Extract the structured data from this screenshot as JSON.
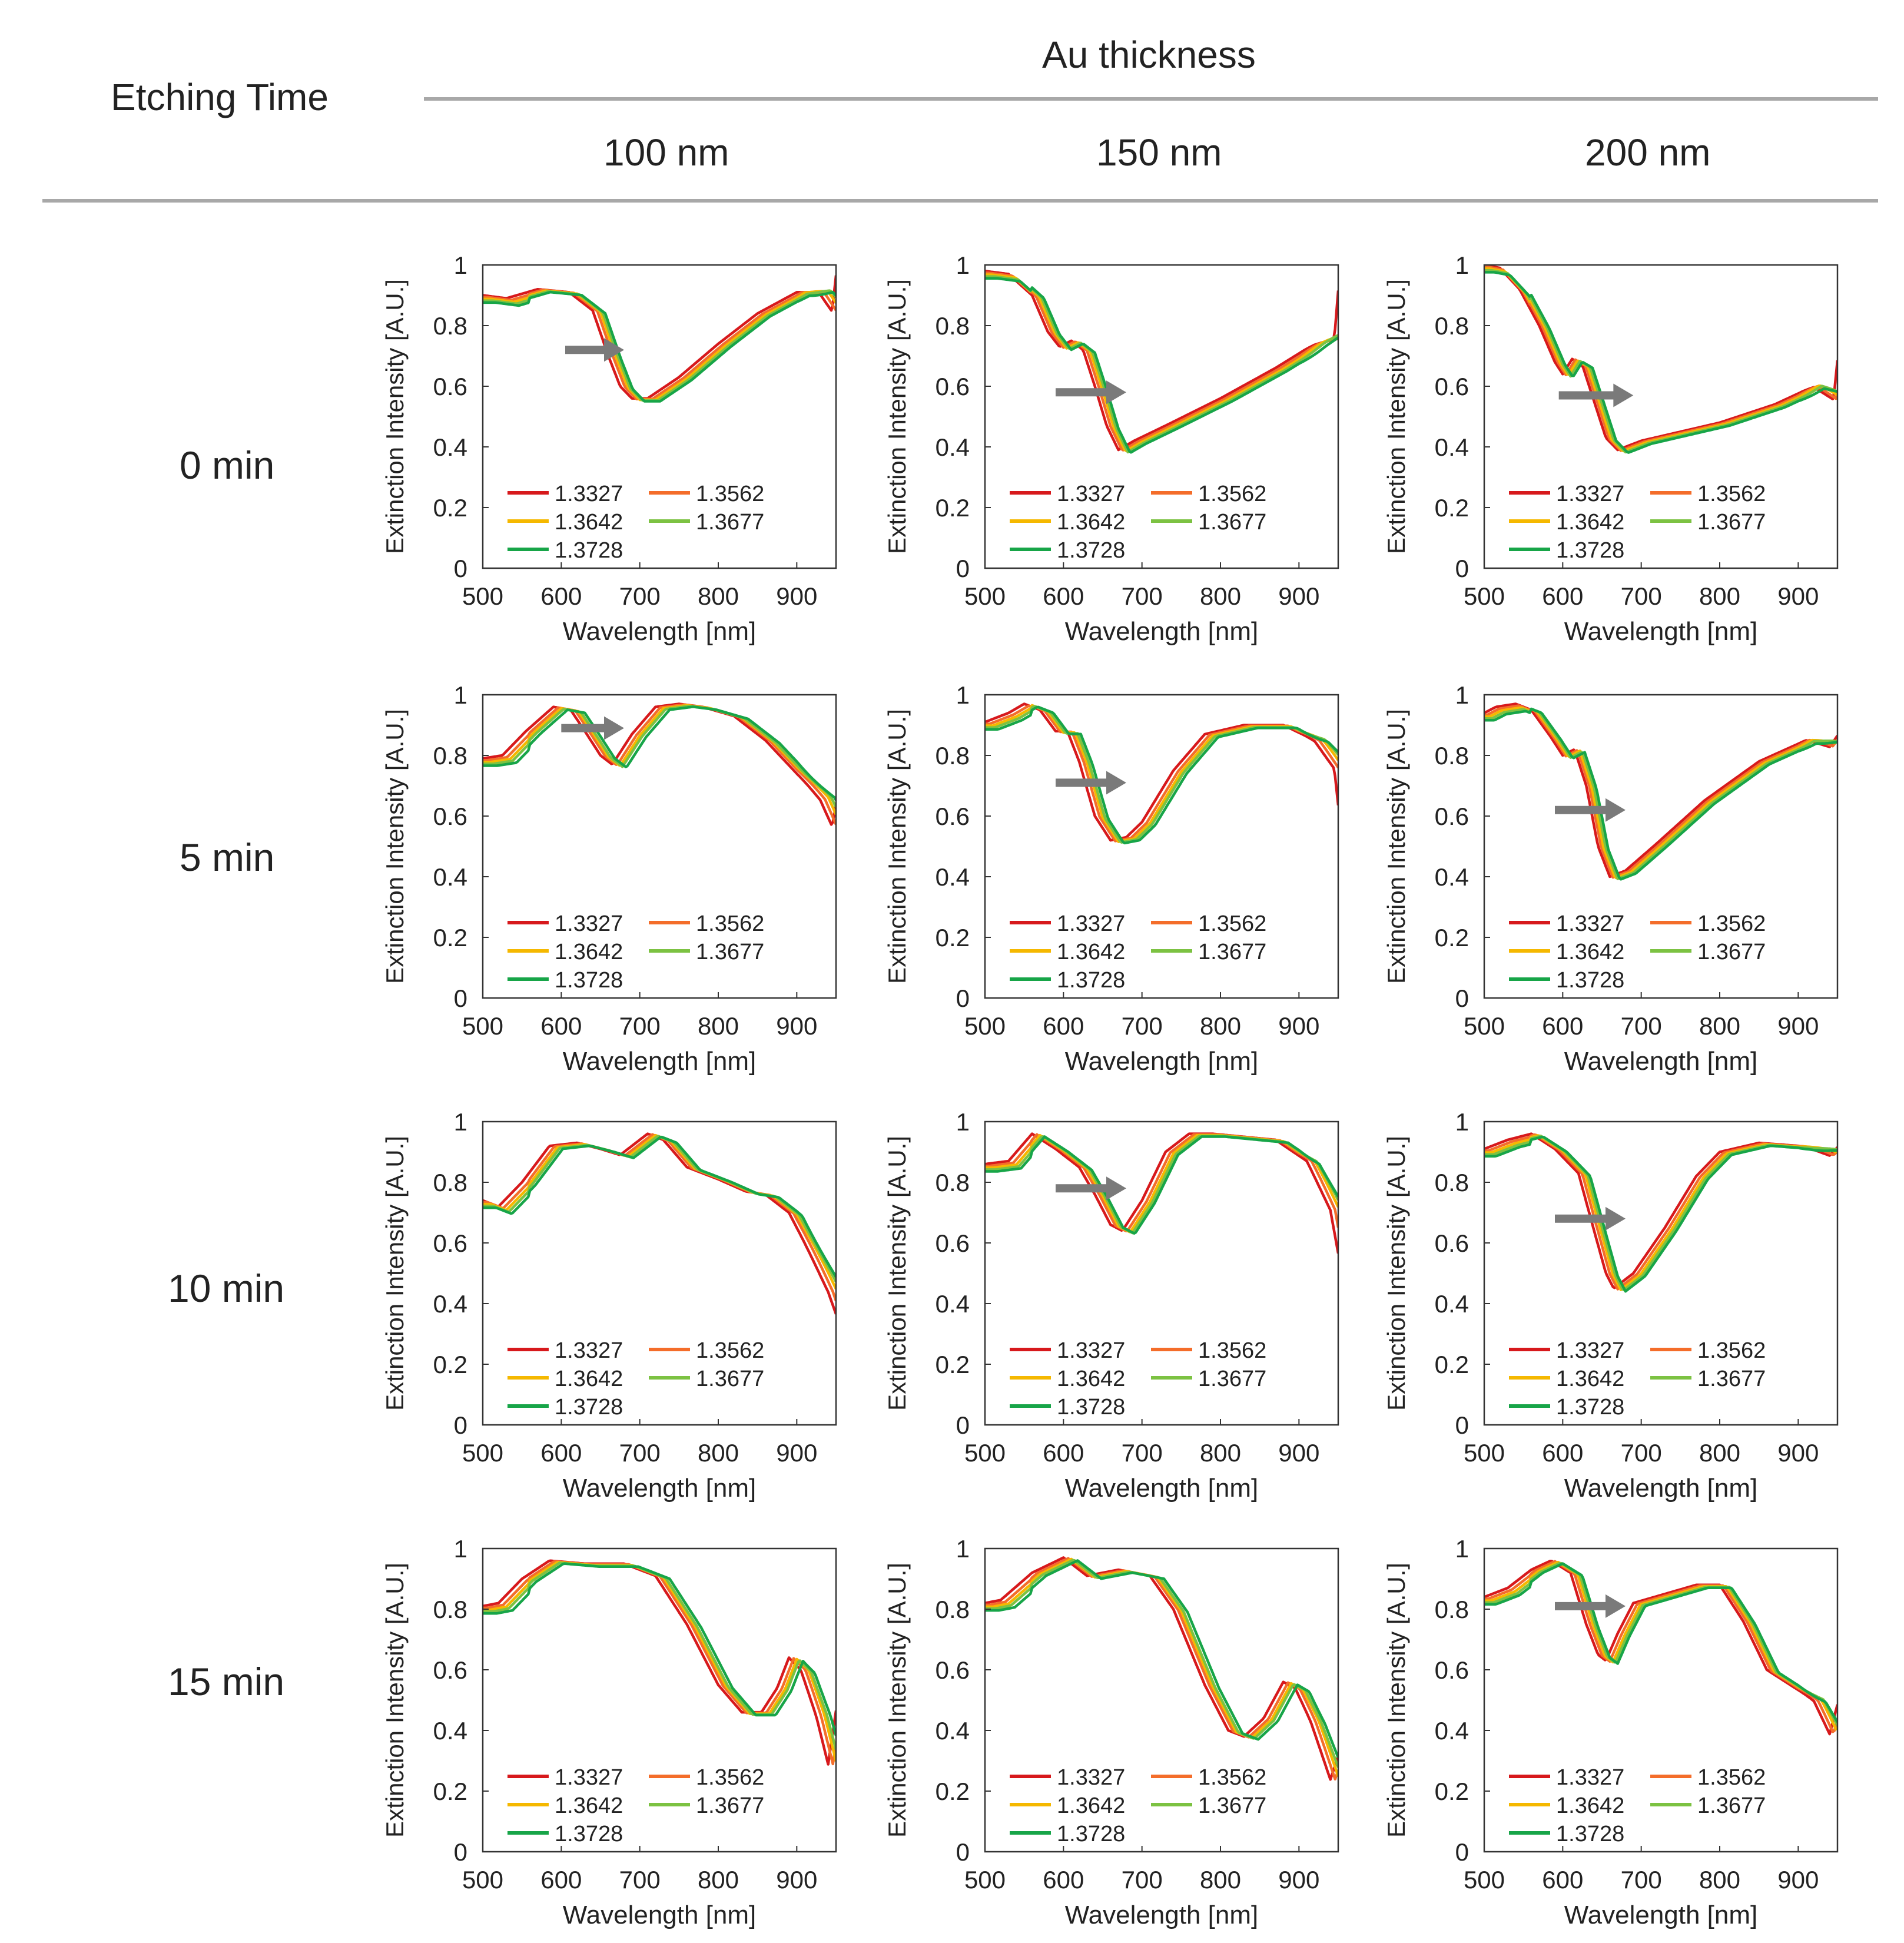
{
  "header": {
    "row_header": "Etching Time",
    "col_group": "Au thickness",
    "columns": [
      "100 nm",
      "150 nm",
      "200 nm"
    ]
  },
  "rows": [
    "0 min",
    "5 min",
    "10 min",
    "15 min"
  ],
  "legend": {
    "series": [
      {
        "name": "1.3327",
        "color": "#d7191c"
      },
      {
        "name": "1.3562",
        "color": "#f46d2a"
      },
      {
        "name": "1.3642",
        "color": "#f5b800"
      },
      {
        "name": "1.3677",
        "color": "#7cc242"
      },
      {
        "name": "1.3728",
        "color": "#17a548"
      }
    ]
  },
  "colors": {
    "arrow": "#7a7a7a",
    "rule": "#a8a8a8"
  },
  "chart_data": [
    {
      "type": "line",
      "row": "0 min",
      "column": "100 nm",
      "xlabel": "Wavelength [nm]",
      "ylabel": "Extinction Intensity [A.U.]",
      "xlim": [
        500,
        950
      ],
      "ylim": [
        0,
        1
      ],
      "xticks": [
        500,
        600,
        700,
        800,
        900
      ],
      "yticks": [
        0,
        0.2,
        0.4,
        0.6,
        0.8,
        1
      ],
      "base": [
        [
          500,
          0.9
        ],
        [
          530,
          0.89
        ],
        [
          570,
          0.92
        ],
        [
          610,
          0.91
        ],
        [
          640,
          0.85
        ],
        [
          660,
          0.7
        ],
        [
          675,
          0.6
        ],
        [
          690,
          0.56
        ],
        [
          710,
          0.56
        ],
        [
          750,
          0.63
        ],
        [
          800,
          0.74
        ],
        [
          850,
          0.84
        ],
        [
          900,
          0.91
        ],
        [
          930,
          0.91
        ],
        [
          945,
          0.86
        ],
        [
          950,
          0.98
        ]
      ],
      "shift": [
        0,
        6,
        10,
        13,
        16
      ],
      "arrow": {
        "x": [
          605,
          680
        ],
        "y": 0.72
      }
    },
    {
      "type": "line",
      "row": "0 min",
      "column": "150 nm",
      "xlabel": "Wavelength [nm]",
      "ylabel": "Extinction Intensity [A.U.]",
      "xlim": [
        500,
        950
      ],
      "ylim": [
        0,
        1
      ],
      "xticks": [
        500,
        600,
        700,
        800,
        900
      ],
      "yticks": [
        0,
        0.2,
        0.4,
        0.6,
        0.8,
        1
      ],
      "base": [
        [
          500,
          0.98
        ],
        [
          530,
          0.97
        ],
        [
          560,
          0.9
        ],
        [
          580,
          0.78
        ],
        [
          595,
          0.73
        ],
        [
          610,
          0.75
        ],
        [
          625,
          0.72
        ],
        [
          640,
          0.6
        ],
        [
          655,
          0.47
        ],
        [
          670,
          0.39
        ],
        [
          690,
          0.42
        ],
        [
          730,
          0.47
        ],
        [
          800,
          0.56
        ],
        [
          870,
          0.66
        ],
        [
          920,
          0.74
        ],
        [
          945,
          0.77
        ],
        [
          950,
          0.93
        ]
      ],
      "shift": [
        0,
        5,
        9,
        12,
        15
      ],
      "arrow": {
        "x": [
          590,
          680
        ],
        "y": 0.58
      }
    },
    {
      "type": "line",
      "row": "0 min",
      "column": "200 nm",
      "xlabel": "Wavelength [nm]",
      "ylabel": "Extinction Intensity [A.U.]",
      "xlim": [
        500,
        950
      ],
      "ylim": [
        0,
        1
      ],
      "xticks": [
        500,
        600,
        700,
        800,
        900
      ],
      "yticks": [
        0,
        0.2,
        0.4,
        0.6,
        0.8,
        1
      ],
      "base": [
        [
          500,
          1.0
        ],
        [
          520,
          0.99
        ],
        [
          545,
          0.92
        ],
        [
          570,
          0.8
        ],
        [
          590,
          0.68
        ],
        [
          600,
          0.64
        ],
        [
          612,
          0.69
        ],
        [
          625,
          0.67
        ],
        [
          640,
          0.55
        ],
        [
          655,
          0.43
        ],
        [
          670,
          0.39
        ],
        [
          700,
          0.42
        ],
        [
          750,
          0.45
        ],
        [
          800,
          0.48
        ],
        [
          870,
          0.54
        ],
        [
          920,
          0.6
        ],
        [
          945,
          0.57
        ],
        [
          950,
          0.7
        ]
      ],
      "shift": [
        0,
        4,
        7,
        10,
        13
      ],
      "arrow": {
        "x": [
          595,
          690
        ],
        "y": 0.57
      }
    },
    {
      "type": "line",
      "row": "5 min",
      "column": "100 nm",
      "xlabel": "Wavelength [nm]",
      "ylabel": "Extinction Intensity [A.U.]",
      "xlim": [
        500,
        950
      ],
      "ylim": [
        0,
        1
      ],
      "xticks": [
        500,
        600,
        700,
        800,
        900
      ],
      "yticks": [
        0,
        0.2,
        0.4,
        0.6,
        0.8,
        1
      ],
      "base": [
        [
          500,
          0.79
        ],
        [
          525,
          0.8
        ],
        [
          555,
          0.88
        ],
        [
          590,
          0.96
        ],
        [
          612,
          0.95
        ],
        [
          630,
          0.88
        ],
        [
          650,
          0.8
        ],
        [
          665,
          0.77
        ],
        [
          690,
          0.87
        ],
        [
          720,
          0.96
        ],
        [
          750,
          0.97
        ],
        [
          780,
          0.96
        ],
        [
          820,
          0.93
        ],
        [
          860,
          0.85
        ],
        [
          900,
          0.74
        ],
        [
          930,
          0.66
        ],
        [
          945,
          0.58
        ],
        [
          950,
          0.65
        ]
      ],
      "shift": [
        0,
        6,
        10,
        13,
        18
      ],
      "arrow": {
        "x": [
          600,
          680
        ],
        "y": 0.89
      }
    },
    {
      "type": "line",
      "row": "5 min",
      "column": "150 nm",
      "xlabel": "Wavelength [nm]",
      "ylabel": "Extinction Intensity [A.U.]",
      "xlim": [
        500,
        950
      ],
      "ylim": [
        0,
        1
      ],
      "xticks": [
        500,
        600,
        700,
        800,
        900
      ],
      "yticks": [
        0,
        0.2,
        0.4,
        0.6,
        0.8,
        1
      ],
      "base": [
        [
          500,
          0.91
        ],
        [
          530,
          0.94
        ],
        [
          550,
          0.97
        ],
        [
          570,
          0.95
        ],
        [
          590,
          0.88
        ],
        [
          605,
          0.88
        ],
        [
          620,
          0.78
        ],
        [
          640,
          0.6
        ],
        [
          660,
          0.52
        ],
        [
          680,
          0.53
        ],
        [
          700,
          0.58
        ],
        [
          740,
          0.75
        ],
        [
          780,
          0.87
        ],
        [
          830,
          0.9
        ],
        [
          880,
          0.9
        ],
        [
          920,
          0.85
        ],
        [
          945,
          0.77
        ],
        [
          950,
          0.65
        ]
      ],
      "shift": [
        0,
        6,
        10,
        13,
        17
      ],
      "arrow": {
        "x": [
          590,
          680
        ],
        "y": 0.71
      }
    },
    {
      "type": "line",
      "row": "5 min",
      "column": "200 nm",
      "xlabel": "Wavelength [nm]",
      "ylabel": "Extinction Intensity [A.U.]",
      "xlim": [
        500,
        950
      ],
      "ylim": [
        0,
        1
      ],
      "xticks": [
        500,
        600,
        700,
        800,
        900
      ],
      "yticks": [
        0,
        0.2,
        0.4,
        0.6,
        0.8,
        1
      ],
      "base": [
        [
          500,
          0.94
        ],
        [
          515,
          0.96
        ],
        [
          540,
          0.97
        ],
        [
          560,
          0.95
        ],
        [
          585,
          0.86
        ],
        [
          600,
          0.8
        ],
        [
          615,
          0.82
        ],
        [
          630,
          0.7
        ],
        [
          645,
          0.5
        ],
        [
          660,
          0.4
        ],
        [
          680,
          0.42
        ],
        [
          720,
          0.51
        ],
        [
          780,
          0.65
        ],
        [
          850,
          0.78
        ],
        [
          910,
          0.85
        ],
        [
          940,
          0.84
        ],
        [
          950,
          0.88
        ]
      ],
      "shift": [
        0,
        4,
        7,
        10,
        13
      ],
      "arrow": {
        "x": [
          590,
          680
        ],
        "y": 0.62
      }
    },
    {
      "type": "line",
      "row": "10 min",
      "column": "100 nm",
      "xlabel": "Wavelength [nm]",
      "ylabel": "Extinction Intensity [A.U.]",
      "xlim": [
        500,
        950
      ],
      "ylim": [
        0,
        1
      ],
      "xticks": [
        500,
        600,
        700,
        800,
        900
      ],
      "yticks": [
        0,
        0.2,
        0.4,
        0.6,
        0.8,
        1
      ],
      "base": [
        [
          500,
          0.74
        ],
        [
          520,
          0.72
        ],
        [
          550,
          0.8
        ],
        [
          585,
          0.92
        ],
        [
          620,
          0.93
        ],
        [
          650,
          0.91
        ],
        [
          675,
          0.89
        ],
        [
          710,
          0.96
        ],
        [
          730,
          0.94
        ],
        [
          760,
          0.85
        ],
        [
          800,
          0.81
        ],
        [
          835,
          0.77
        ],
        [
          860,
          0.76
        ],
        [
          890,
          0.7
        ],
        [
          920,
          0.55
        ],
        [
          940,
          0.45
        ],
        [
          950,
          0.38
        ]
      ],
      "shift": [
        0,
        6,
        10,
        13,
        17
      ],
      "arrow": null
    },
    {
      "type": "line",
      "row": "10 min",
      "column": "150 nm",
      "xlabel": "Wavelength [nm]",
      "ylabel": "Extinction Intensity [A.U.]",
      "xlim": [
        500,
        950
      ],
      "ylim": [
        0,
        1
      ],
      "xticks": [
        500,
        600,
        700,
        800,
        900
      ],
      "yticks": [
        0,
        0.2,
        0.4,
        0.6,
        0.8,
        1
      ],
      "base": [
        [
          500,
          0.86
        ],
        [
          530,
          0.87
        ],
        [
          560,
          0.96
        ],
        [
          590,
          0.91
        ],
        [
          620,
          0.85
        ],
        [
          640,
          0.76
        ],
        [
          660,
          0.66
        ],
        [
          675,
          0.64
        ],
        [
          700,
          0.74
        ],
        [
          730,
          0.9
        ],
        [
          760,
          0.96
        ],
        [
          790,
          0.96
        ],
        [
          830,
          0.95
        ],
        [
          870,
          0.94
        ],
        [
          910,
          0.87
        ],
        [
          940,
          0.72
        ],
        [
          950,
          0.58
        ]
      ],
      "shift": [
        0,
        6,
        10,
        13,
        16
      ],
      "arrow": {
        "x": [
          590,
          680
        ],
        "y": 0.78
      }
    },
    {
      "type": "line",
      "row": "10 min",
      "column": "200 nm",
      "xlabel": "Wavelength [nm]",
      "ylabel": "Extinction Intensity [A.U.]",
      "xlim": [
        500,
        950
      ],
      "ylim": [
        0,
        1
      ],
      "xticks": [
        500,
        600,
        700,
        800,
        900
      ],
      "yticks": [
        0,
        0.2,
        0.4,
        0.6,
        0.8,
        1
      ],
      "base": [
        [
          500,
          0.91
        ],
        [
          530,
          0.94
        ],
        [
          560,
          0.96
        ],
        [
          590,
          0.91
        ],
        [
          620,
          0.83
        ],
        [
          640,
          0.64
        ],
        [
          655,
          0.5
        ],
        [
          665,
          0.45
        ],
        [
          690,
          0.5
        ],
        [
          730,
          0.65
        ],
        [
          770,
          0.82
        ],
        [
          800,
          0.9
        ],
        [
          850,
          0.93
        ],
        [
          900,
          0.92
        ],
        [
          940,
          0.9
        ],
        [
          950,
          0.93
        ]
      ],
      "shift": [
        0,
        5,
        9,
        12,
        15
      ],
      "arrow": {
        "x": [
          590,
          680
        ],
        "y": 0.68
      }
    },
    {
      "type": "line",
      "row": "15 min",
      "column": "100 nm",
      "xlabel": "Wavelength [nm]",
      "ylabel": "Extinction Intensity [A.U.]",
      "xlim": [
        500,
        950
      ],
      "ylim": [
        0,
        1
      ],
      "xticks": [
        500,
        600,
        700,
        800,
        900
      ],
      "yticks": [
        0,
        0.2,
        0.4,
        0.6,
        0.8,
        1
      ],
      "base": [
        [
          500,
          0.81
        ],
        [
          520,
          0.82
        ],
        [
          550,
          0.9
        ],
        [
          585,
          0.96
        ],
        [
          630,
          0.95
        ],
        [
          680,
          0.95
        ],
        [
          720,
          0.91
        ],
        [
          760,
          0.75
        ],
        [
          800,
          0.55
        ],
        [
          830,
          0.46
        ],
        [
          855,
          0.46
        ],
        [
          875,
          0.54
        ],
        [
          890,
          0.64
        ],
        [
          905,
          0.6
        ],
        [
          925,
          0.45
        ],
        [
          940,
          0.3
        ],
        [
          950,
          0.48
        ]
      ],
      "shift": [
        0,
        6,
        10,
        13,
        18
      ],
      "arrow": null
    },
    {
      "type": "line",
      "row": "15 min",
      "column": "150 nm",
      "xlabel": "Wavelength [nm]",
      "ylabel": "Extinction Intensity [A.U.]",
      "xlim": [
        500,
        950
      ],
      "ylim": [
        0,
        1
      ],
      "xticks": [
        500,
        600,
        700,
        800,
        900
      ],
      "yticks": [
        0,
        0.2,
        0.4,
        0.6,
        0.8,
        1
      ],
      "base": [
        [
          500,
          0.82
        ],
        [
          520,
          0.83
        ],
        [
          560,
          0.92
        ],
        [
          600,
          0.97
        ],
        [
          630,
          0.91
        ],
        [
          670,
          0.93
        ],
        [
          710,
          0.91
        ],
        [
          740,
          0.8
        ],
        [
          780,
          0.55
        ],
        [
          810,
          0.4
        ],
        [
          830,
          0.38
        ],
        [
          855,
          0.44
        ],
        [
          880,
          0.56
        ],
        [
          895,
          0.54
        ],
        [
          915,
          0.43
        ],
        [
          940,
          0.25
        ],
        [
          950,
          0.33
        ]
      ],
      "shift": [
        0,
        6,
        10,
        13,
        18
      ],
      "arrow": null
    },
    {
      "type": "line",
      "row": "15 min",
      "column": "200 nm",
      "xlabel": "Wavelength [nm]",
      "ylabel": "Extinction Intensity [A.U.]",
      "xlim": [
        500,
        950
      ],
      "ylim": [
        0,
        1
      ],
      "xticks": [
        500,
        600,
        700,
        800,
        900
      ],
      "yticks": [
        0,
        0.2,
        0.4,
        0.6,
        0.8,
        1
      ],
      "base": [
        [
          500,
          0.84
        ],
        [
          530,
          0.87
        ],
        [
          560,
          0.93
        ],
        [
          585,
          0.96
        ],
        [
          610,
          0.92
        ],
        [
          630,
          0.75
        ],
        [
          645,
          0.65
        ],
        [
          655,
          0.63
        ],
        [
          670,
          0.72
        ],
        [
          690,
          0.82
        ],
        [
          730,
          0.85
        ],
        [
          770,
          0.88
        ],
        [
          800,
          0.88
        ],
        [
          830,
          0.76
        ],
        [
          860,
          0.6
        ],
        [
          890,
          0.55
        ],
        [
          920,
          0.5
        ],
        [
          940,
          0.4
        ],
        [
          950,
          0.5
        ]
      ],
      "shift": [
        0,
        5,
        9,
        12,
        15
      ],
      "arrow": {
        "x": [
          590,
          680
        ],
        "y": 0.81
      }
    }
  ]
}
